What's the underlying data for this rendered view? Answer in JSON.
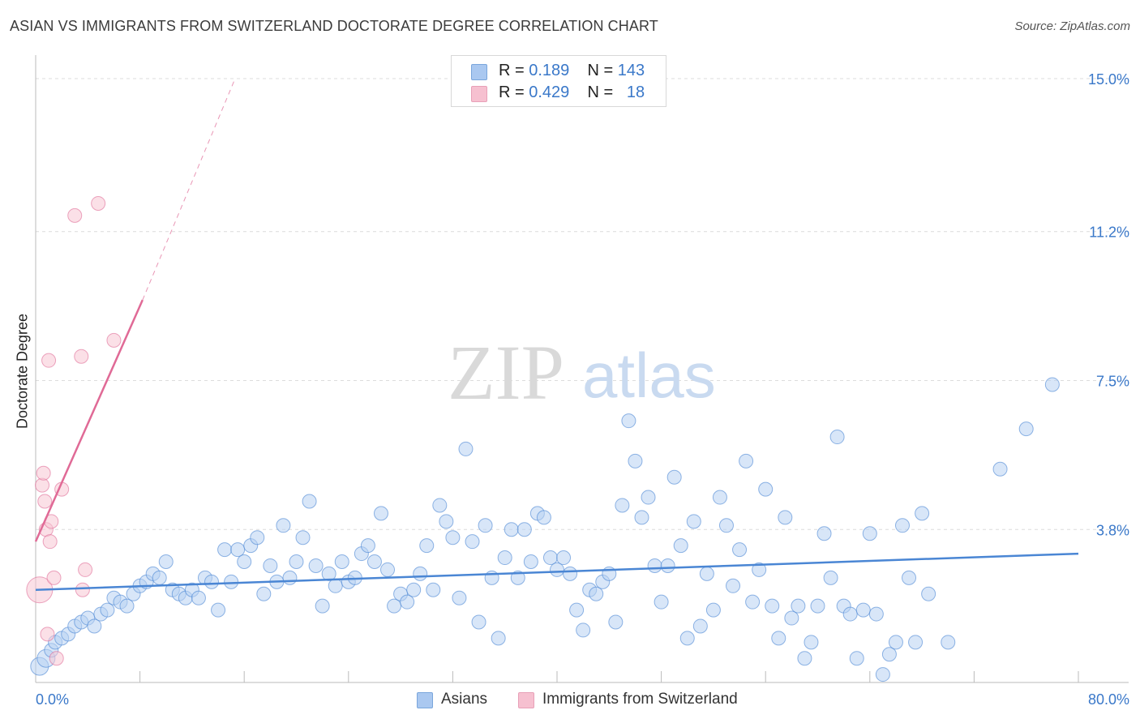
{
  "title": "ASIAN VS IMMIGRANTS FROM SWITZERLAND DOCTORATE DEGREE CORRELATION CHART",
  "source": "Source: ZipAtlas.com",
  "watermark": {
    "zip": "ZIP",
    "atlas": "atlas"
  },
  "legend": {
    "rows": [
      {
        "r_label": "R =",
        "r_value": "0.189",
        "n_label": "N =",
        "n_value": "143",
        "color": "#aac8f0"
      },
      {
        "r_label": "R =",
        "r_value": "0.429",
        "n_label": "N =",
        "n_value": "18",
        "color": "#f6c0d0"
      }
    ]
  },
  "bottom_legend": [
    {
      "label": "Asians",
      "color": "#aac8f0"
    },
    {
      "label": "Immigrants from Switzerland",
      "color": "#f6c0d0"
    }
  ],
  "chart_data": {
    "type": "scatter",
    "ylabel": "Doctorate Degree",
    "xlim": [
      0,
      80
    ],
    "ylim": [
      0,
      15
    ],
    "x_tick_labels": [
      "0.0%",
      "80.0%"
    ],
    "y_ticks": [
      {
        "value": 3.8,
        "label": "3.8%"
      },
      {
        "value": 7.5,
        "label": "7.5%"
      },
      {
        "value": 11.2,
        "label": "11.2%"
      },
      {
        "value": 15.0,
        "label": "15.0%"
      }
    ],
    "grid": true,
    "series": [
      {
        "name": "Asians",
        "color": "#4a86d4",
        "fill": "#b8d2f2",
        "trend": {
          "x0": 0,
          "y0": 2.3,
          "x1": 80,
          "y1": 3.2
        },
        "points": [
          [
            0.3,
            0.4
          ],
          [
            0.8,
            0.6
          ],
          [
            1.2,
            0.8
          ],
          [
            1.5,
            1.0
          ],
          [
            2.0,
            1.1
          ],
          [
            2.5,
            1.2
          ],
          [
            3.0,
            1.4
          ],
          [
            3.5,
            1.5
          ],
          [
            4.0,
            1.6
          ],
          [
            4.5,
            1.4
          ],
          [
            5.0,
            1.7
          ],
          [
            5.5,
            1.8
          ],
          [
            6.0,
            2.1
          ],
          [
            6.5,
            2.0
          ],
          [
            7.0,
            1.9
          ],
          [
            7.5,
            2.2
          ],
          [
            8.0,
            2.4
          ],
          [
            8.5,
            2.5
          ],
          [
            9.0,
            2.7
          ],
          [
            9.5,
            2.6
          ],
          [
            10.0,
            3.0
          ],
          [
            10.5,
            2.3
          ],
          [
            11.0,
            2.2
          ],
          [
            11.5,
            2.1
          ],
          [
            12.0,
            2.3
          ],
          [
            12.5,
            2.1
          ],
          [
            13.0,
            2.6
          ],
          [
            13.5,
            2.5
          ],
          [
            14.0,
            1.8
          ],
          [
            14.5,
            3.3
          ],
          [
            15.0,
            2.5
          ],
          [
            15.5,
            3.3
          ],
          [
            16.0,
            3.0
          ],
          [
            16.5,
            3.4
          ],
          [
            17.0,
            3.6
          ],
          [
            17.5,
            2.2
          ],
          [
            18.0,
            2.9
          ],
          [
            18.5,
            2.5
          ],
          [
            19.0,
            3.9
          ],
          [
            19.5,
            2.6
          ],
          [
            20.0,
            3.0
          ],
          [
            20.5,
            3.6
          ],
          [
            21.0,
            4.5
          ],
          [
            21.5,
            2.9
          ],
          [
            22.0,
            1.9
          ],
          [
            22.5,
            2.7
          ],
          [
            23.0,
            2.4
          ],
          [
            23.5,
            3.0
          ],
          [
            24.0,
            2.5
          ],
          [
            24.5,
            2.6
          ],
          [
            25.0,
            3.2
          ],
          [
            25.5,
            3.4
          ],
          [
            26.0,
            3.0
          ],
          [
            26.5,
            4.2
          ],
          [
            27.0,
            2.8
          ],
          [
            27.5,
            1.9
          ],
          [
            28.0,
            2.2
          ],
          [
            28.5,
            2.0
          ],
          [
            29.0,
            2.3
          ],
          [
            29.5,
            2.7
          ],
          [
            30.0,
            3.4
          ],
          [
            30.5,
            2.3
          ],
          [
            31.0,
            4.4
          ],
          [
            31.5,
            4.0
          ],
          [
            32.0,
            3.6
          ],
          [
            32.5,
            2.1
          ],
          [
            33.0,
            5.8
          ],
          [
            33.5,
            3.5
          ],
          [
            34.0,
            1.5
          ],
          [
            34.5,
            3.9
          ],
          [
            35.0,
            2.6
          ],
          [
            35.5,
            1.1
          ],
          [
            36.0,
            3.1
          ],
          [
            36.5,
            3.8
          ],
          [
            37.0,
            2.6
          ],
          [
            37.5,
            3.8
          ],
          [
            38.0,
            3.0
          ],
          [
            38.5,
            4.2
          ],
          [
            39.0,
            4.1
          ],
          [
            39.5,
            3.1
          ],
          [
            40.0,
            2.8
          ],
          [
            40.5,
            3.1
          ],
          [
            41.0,
            2.7
          ],
          [
            41.5,
            1.8
          ],
          [
            42.0,
            1.3
          ],
          [
            42.5,
            2.3
          ],
          [
            43.0,
            2.2
          ],
          [
            43.5,
            2.5
          ],
          [
            44.0,
            2.7
          ],
          [
            44.5,
            1.5
          ],
          [
            45.0,
            4.4
          ],
          [
            45.5,
            6.5
          ],
          [
            46.0,
            5.5
          ],
          [
            46.5,
            4.1
          ],
          [
            47.0,
            4.6
          ],
          [
            47.5,
            2.9
          ],
          [
            48.0,
            2.0
          ],
          [
            48.5,
            2.9
          ],
          [
            49.0,
            5.1
          ],
          [
            49.5,
            3.4
          ],
          [
            50.0,
            1.1
          ],
          [
            50.5,
            4.0
          ],
          [
            51.0,
            1.4
          ],
          [
            51.5,
            2.7
          ],
          [
            52.0,
            1.8
          ],
          [
            52.5,
            4.6
          ],
          [
            53.0,
            3.9
          ],
          [
            53.5,
            2.4
          ],
          [
            54.0,
            3.3
          ],
          [
            54.5,
            5.5
          ],
          [
            55.0,
            2.0
          ],
          [
            55.5,
            2.8
          ],
          [
            56.0,
            4.8
          ],
          [
            56.5,
            1.9
          ],
          [
            57.0,
            1.1
          ],
          [
            57.5,
            4.1
          ],
          [
            58.0,
            1.6
          ],
          [
            58.5,
            1.9
          ],
          [
            59.0,
            0.6
          ],
          [
            59.5,
            1.0
          ],
          [
            60.0,
            1.9
          ],
          [
            60.5,
            3.7
          ],
          [
            61.0,
            2.6
          ],
          [
            61.5,
            6.1
          ],
          [
            62.0,
            1.9
          ],
          [
            62.5,
            1.7
          ],
          [
            63.0,
            0.6
          ],
          [
            63.5,
            1.8
          ],
          [
            64.0,
            3.7
          ],
          [
            64.5,
            1.7
          ],
          [
            65.0,
            0.2
          ],
          [
            65.5,
            0.7
          ],
          [
            66.0,
            1.0
          ],
          [
            66.5,
            3.9
          ],
          [
            67.0,
            2.6
          ],
          [
            67.5,
            1.0
          ],
          [
            68.0,
            4.2
          ],
          [
            68.5,
            2.2
          ],
          [
            70.0,
            1.0
          ],
          [
            74.0,
            5.3
          ],
          [
            76.0,
            6.3
          ],
          [
            78.0,
            7.4
          ]
        ]
      },
      {
        "name": "Immigrants from Switzerland",
        "color": "#e06a96",
        "fill": "#f8c6d4",
        "trend": {
          "x0": 0,
          "y0": 3.5,
          "x1": 8.2,
          "y1": 9.5
        },
        "trend_ext": {
          "x0": 8.2,
          "y0": 9.5,
          "x1": 15.3,
          "y1": 15.0
        },
        "points": [
          [
            0.3,
            2.3
          ],
          [
            0.5,
            4.9
          ],
          [
            0.6,
            5.2
          ],
          [
            0.7,
            4.5
          ],
          [
            0.8,
            3.8
          ],
          [
            0.9,
            1.2
          ],
          [
            1.0,
            8.0
          ],
          [
            1.1,
            3.5
          ],
          [
            1.2,
            4.0
          ],
          [
            1.4,
            2.6
          ],
          [
            1.6,
            0.6
          ],
          [
            2.0,
            4.8
          ],
          [
            3.0,
            11.6
          ],
          [
            3.5,
            8.1
          ],
          [
            3.6,
            2.3
          ],
          [
            3.8,
            2.8
          ],
          [
            4.8,
            11.9
          ],
          [
            6.0,
            8.5
          ]
        ]
      }
    ]
  }
}
